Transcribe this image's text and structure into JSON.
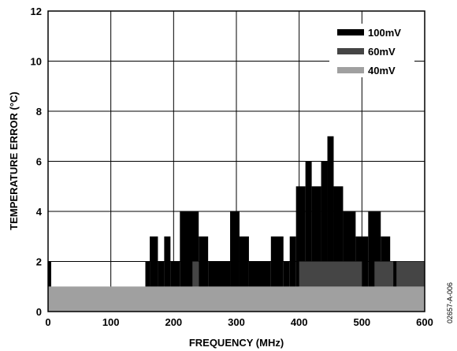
{
  "chart_data": {
    "type": "bar",
    "xlabel": "FREQUENCY (MHz)",
    "ylabel": "TEMPERATURE ERROR (°C)",
    "xlim": [
      0,
      600
    ],
    "ylim": [
      0,
      12
    ],
    "x_ticks": [
      "0",
      "100",
      "200",
      "300",
      "400",
      "500",
      "600"
    ],
    "y_ticks": [
      "0",
      "2",
      "4",
      "6",
      "8",
      "10",
      "12"
    ],
    "grid": true,
    "legend_position": "top-right",
    "figure_id": "02657-A-006",
    "series": [
      {
        "name": "100mV",
        "color": "#000000",
        "segments": [
          {
            "x0": 0,
            "x1": 5,
            "y": 2
          },
          {
            "x0": 155,
            "x1": 162,
            "y": 2
          },
          {
            "x0": 162,
            "x1": 175,
            "y": 3
          },
          {
            "x0": 175,
            "x1": 185,
            "y": 2
          },
          {
            "x0": 185,
            "x1": 195,
            "y": 3
          },
          {
            "x0": 195,
            "x1": 210,
            "y": 2
          },
          {
            "x0": 210,
            "x1": 240,
            "y": 4
          },
          {
            "x0": 240,
            "x1": 255,
            "y": 3
          },
          {
            "x0": 255,
            "x1": 290,
            "y": 2
          },
          {
            "x0": 290,
            "x1": 305,
            "y": 4
          },
          {
            "x0": 305,
            "x1": 320,
            "y": 3
          },
          {
            "x0": 320,
            "x1": 355,
            "y": 2
          },
          {
            "x0": 355,
            "x1": 375,
            "y": 3
          },
          {
            "x0": 375,
            "x1": 385,
            "y": 2
          },
          {
            "x0": 385,
            "x1": 395,
            "y": 3
          },
          {
            "x0": 395,
            "x1": 410,
            "y": 5
          },
          {
            "x0": 410,
            "x1": 420,
            "y": 6
          },
          {
            "x0": 420,
            "x1": 435,
            "y": 5
          },
          {
            "x0": 435,
            "x1": 445,
            "y": 6
          },
          {
            "x0": 445,
            "x1": 455,
            "y": 7
          },
          {
            "x0": 455,
            "x1": 470,
            "y": 5
          },
          {
            "x0": 470,
            "x1": 490,
            "y": 4
          },
          {
            "x0": 490,
            "x1": 510,
            "y": 3
          },
          {
            "x0": 510,
            "x1": 530,
            "y": 4
          },
          {
            "x0": 530,
            "x1": 545,
            "y": 3
          },
          {
            "x0": 545,
            "x1": 600,
            "y": 2
          }
        ]
      },
      {
        "name": "60mV",
        "color": "#454545",
        "segments": [
          {
            "x0": 0,
            "x1": 5,
            "y": 1
          },
          {
            "x0": 230,
            "x1": 240,
            "y": 2
          },
          {
            "x0": 400,
            "x1": 500,
            "y": 2
          },
          {
            "x0": 520,
            "x1": 550,
            "y": 2
          },
          {
            "x0": 555,
            "x1": 600,
            "y": 2
          }
        ]
      },
      {
        "name": "40mV",
        "color": "#a0a0a0",
        "segments": [
          {
            "x0": 0,
            "x1": 600,
            "y": 1
          }
        ]
      }
    ]
  }
}
